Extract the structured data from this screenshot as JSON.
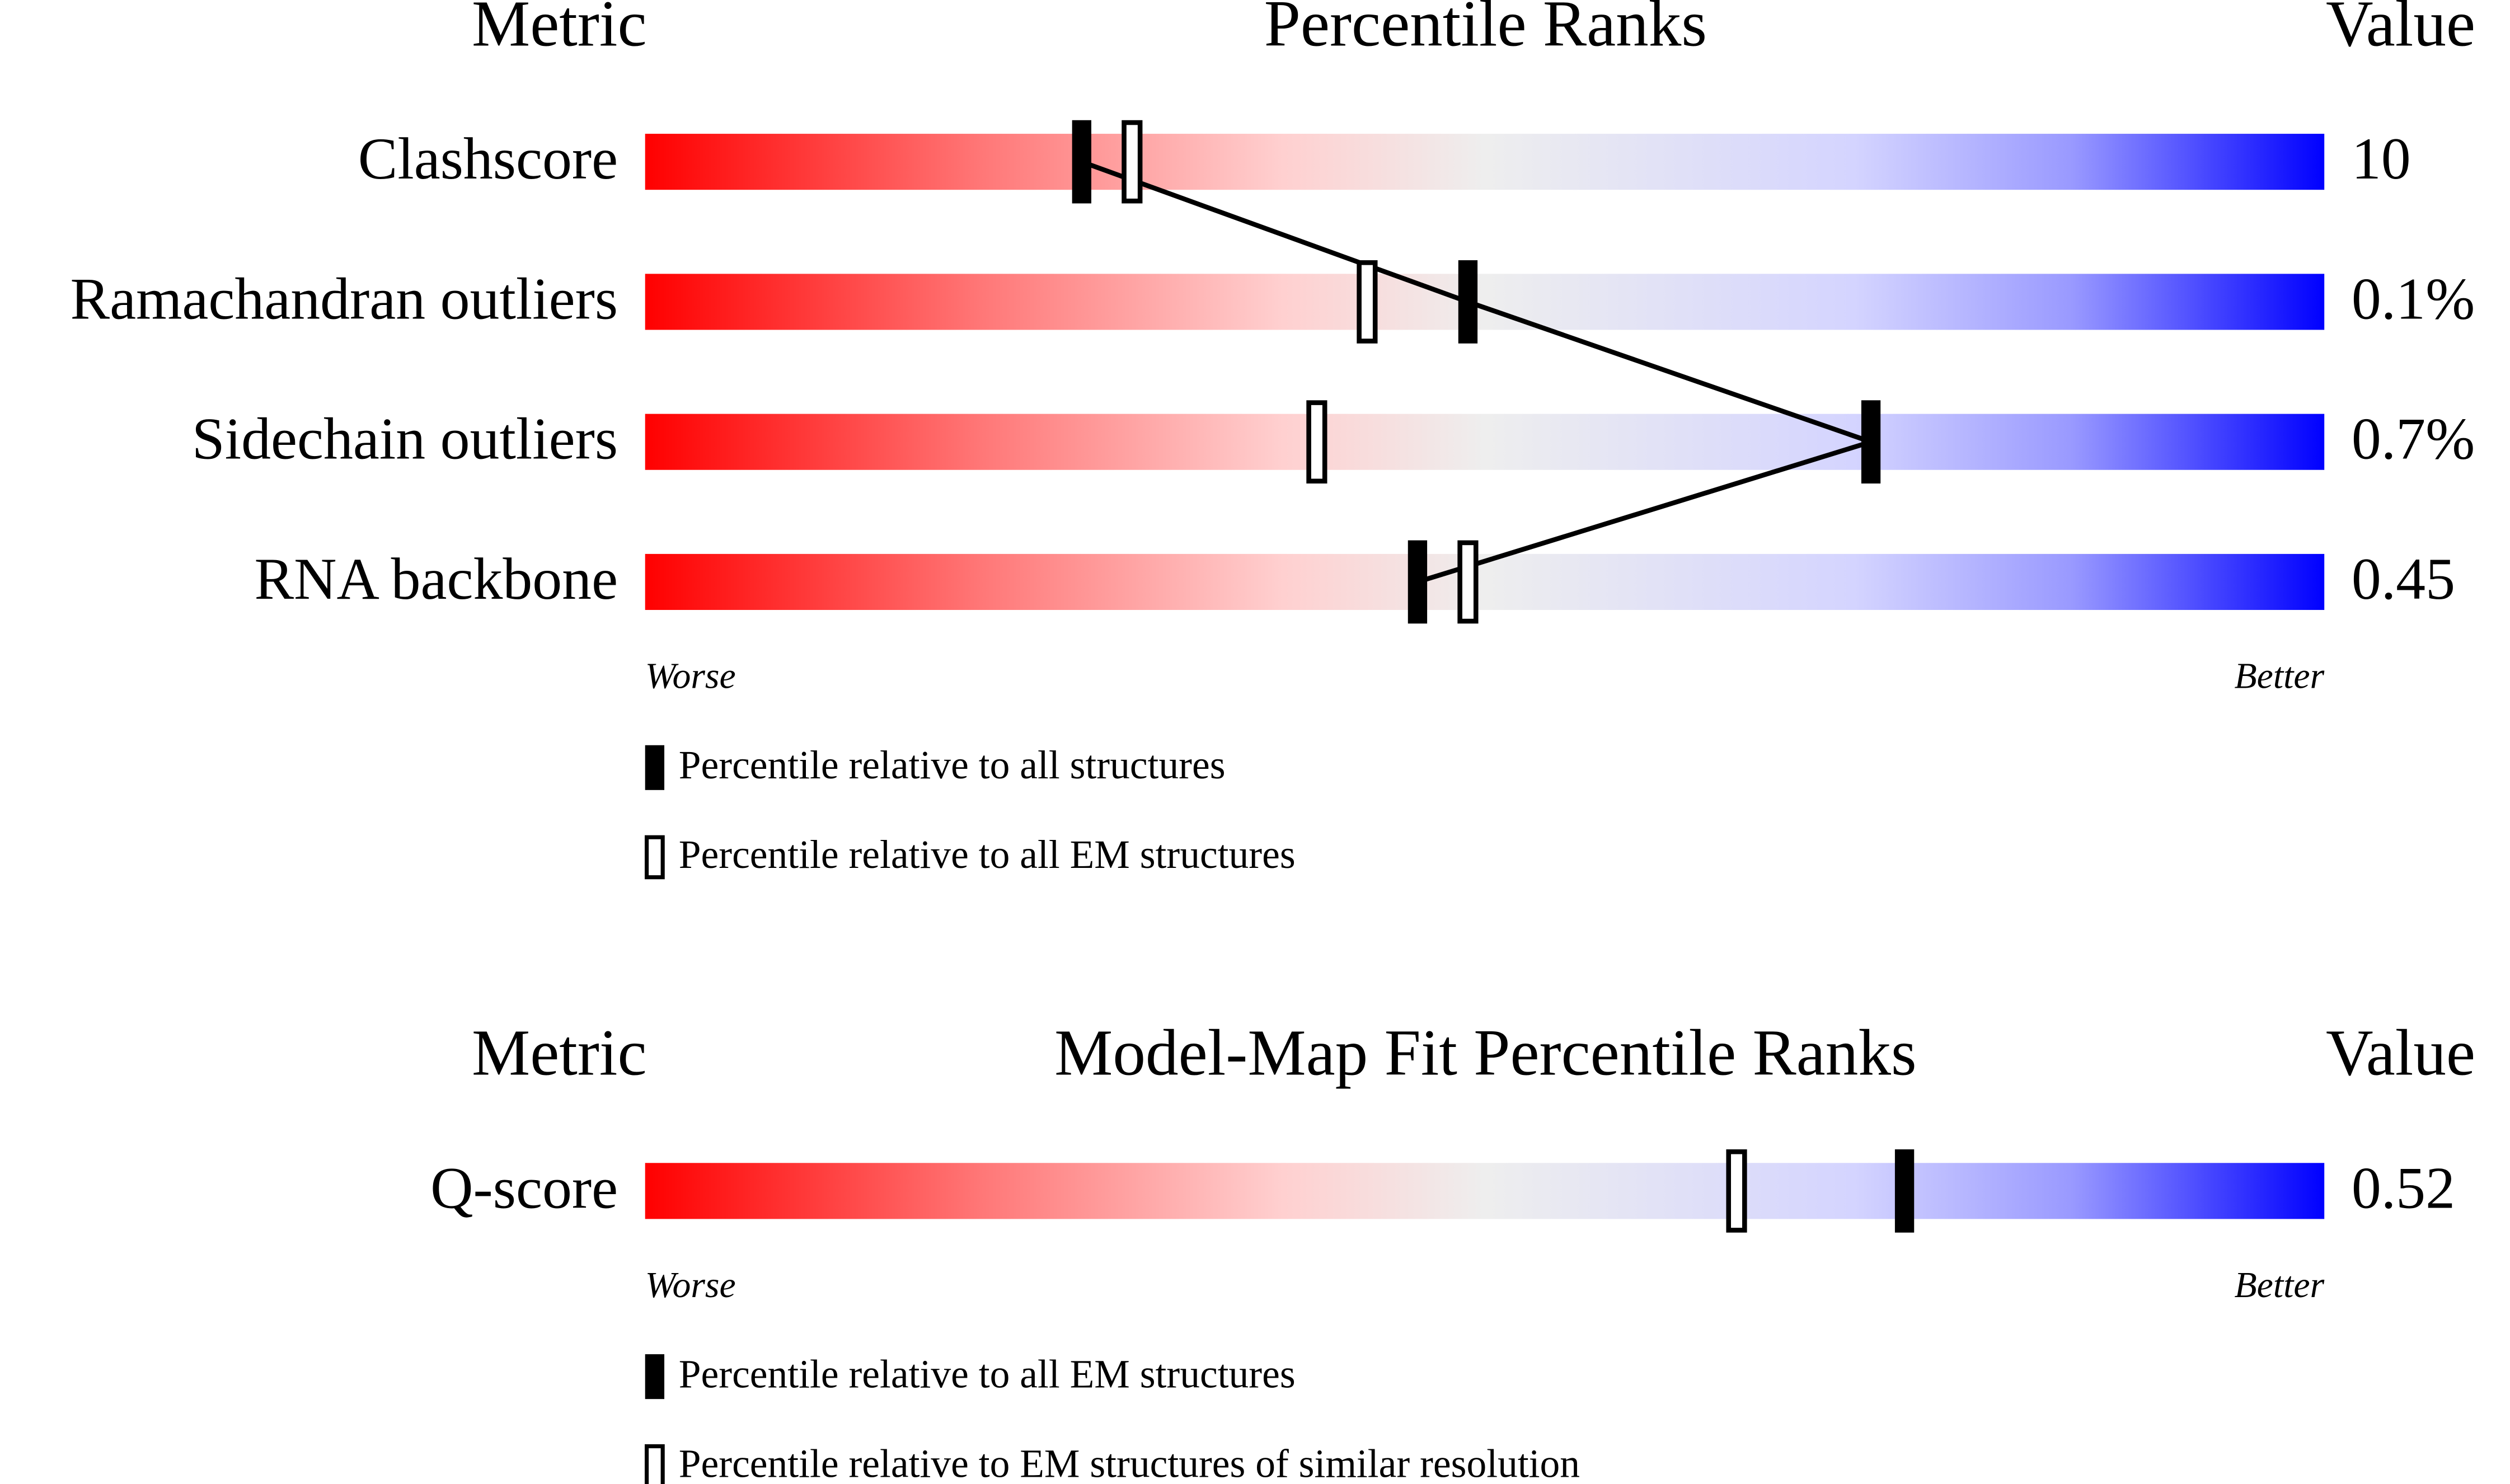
{
  "chart_data": [
    {
      "type": "slider",
      "metric_header": "Metric",
      "title": "Percentile Ranks",
      "value_header": "Value",
      "categories": [
        "Clashscore",
        "Ramachandran outliers",
        "Sidechain outliers",
        "RNA backbone"
      ],
      "value_labels": [
        "10",
        "0.1%",
        "0.7%",
        "0.45"
      ],
      "low_label": "Worse",
      "high_label": "Better",
      "xlim": [
        0,
        100
      ],
      "series": [
        {
          "name": "Percentile relative to all structures",
          "color": "#000000",
          "style": "filled",
          "connect": true,
          "values": [
            26,
            49,
            73,
            46
          ]
        },
        {
          "name": "Percentile relative to all EM structures",
          "color": "#000000",
          "style": "open",
          "connect": false,
          "values": [
            29,
            43,
            40,
            49
          ]
        }
      ]
    },
    {
      "type": "slider",
      "metric_header": "Metric",
      "title": "Model-Map Fit Percentile Ranks",
      "value_header": "Value",
      "categories": [
        "Q-score"
      ],
      "value_labels": [
        "0.52"
      ],
      "low_label": "Worse",
      "high_label": "Better",
      "xlim": [
        0,
        100
      ],
      "series": [
        {
          "name": "Percentile relative to all EM structures",
          "color": "#000000",
          "style": "filled",
          "connect": false,
          "values": [
            75
          ]
        },
        {
          "name": "Percentile relative to EM structures of similar resolution",
          "color": "#000000",
          "style": "open",
          "connect": false,
          "values": [
            65
          ]
        }
      ]
    }
  ]
}
